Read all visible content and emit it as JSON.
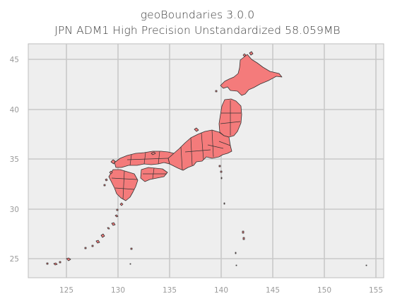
{
  "title": {
    "line1": "geoBoundaries 3.0.0",
    "line2": "JPN ADM1 High Precision Unstandardized 58.059MB"
  },
  "map": {
    "background_color": "#eeeeee",
    "grid_color": "#c8c8c8",
    "land_fill": "#f47b7b",
    "land_stroke": "#333333",
    "x_ticks": [
      "125",
      "130",
      "135",
      "140",
      "145",
      "150",
      "155"
    ],
    "y_ticks": [
      "45",
      "40",
      "35",
      "30",
      "25"
    ],
    "grid": true
  }
}
